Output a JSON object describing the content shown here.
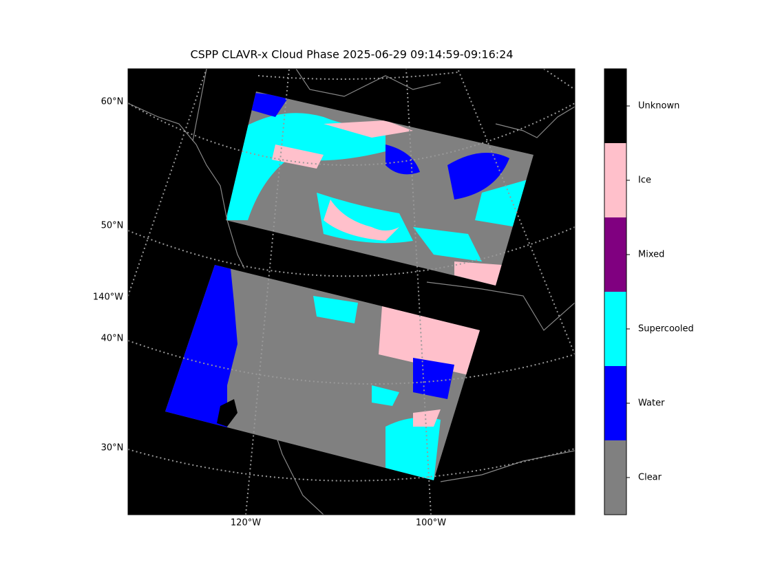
{
  "title": "CSPP CLAVR-x Cloud Phase 2025-06-29 09:14:59-09:16:24",
  "latitude_labels": [
    "60°N",
    "50°N",
    "40°N",
    "30°N"
  ],
  "longitude_labels": [
    "140°W",
    "120°W",
    "100°W"
  ],
  "colorbar": [
    {
      "label": "Unknown",
      "color": "#000000"
    },
    {
      "label": "Ice",
      "color": "#ffc0cb"
    },
    {
      "label": "Mixed",
      "color": "#800080"
    },
    {
      "label": "Supercooled",
      "color": "#00ffff"
    },
    {
      "label": "Water",
      "color": "#0000ff"
    },
    {
      "label": "Clear",
      "color": "#808080"
    }
  ]
}
